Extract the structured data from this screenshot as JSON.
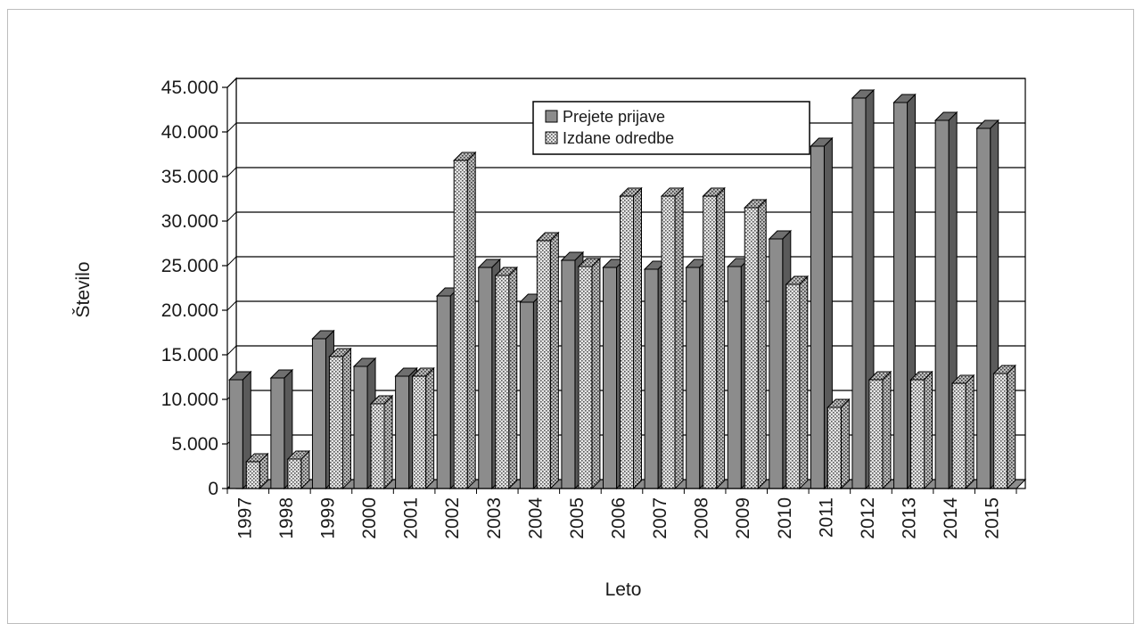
{
  "chart_data": {
    "type": "bar",
    "title": "",
    "xlabel": "Leto",
    "ylabel": "Število",
    "ylim": [
      0,
      45000
    ],
    "yticks": [
      "0",
      "5.000",
      "10.000",
      "15.000",
      "20.000",
      "25.000",
      "30.000",
      "35.000",
      "40.000",
      "45.000"
    ],
    "ytick_values": [
      0,
      5000,
      10000,
      15000,
      20000,
      25000,
      30000,
      35000,
      40000,
      45000
    ],
    "grid": true,
    "legend_position": "top-center",
    "categories": [
      "1997",
      "1998",
      "1999",
      "2000",
      "2001",
      "2002",
      "2003",
      "2004",
      "2005",
      "2006",
      "2007",
      "2008",
      "2009",
      "2010",
      "2011",
      "2012",
      "2013",
      "2014",
      "2015"
    ],
    "series": [
      {
        "name": "Prejete prijave",
        "color": "#8c8c8c",
        "pattern": "solid",
        "values": [
          12200,
          12400,
          16800,
          13700,
          12600,
          21600,
          24800,
          20900,
          25600,
          24800,
          24600,
          24800,
          24900,
          28000,
          38400,
          43800,
          43300,
          41300,
          40400
        ]
      },
      {
        "name": "Izdane odredbe",
        "color": "#d9d9d9",
        "pattern": "dotted",
        "values": [
          3000,
          3300,
          14800,
          9500,
          12600,
          36800,
          23900,
          27800,
          24900,
          32800,
          32800,
          32800,
          31500,
          22900,
          9100,
          12200,
          12200,
          11800,
          12900
        ]
      }
    ]
  }
}
